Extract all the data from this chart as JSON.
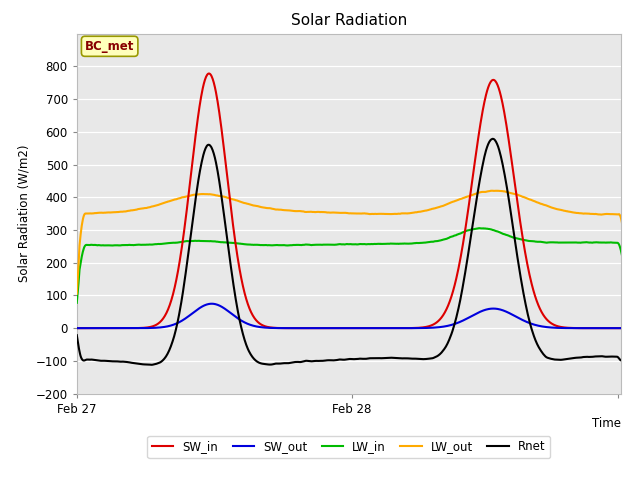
{
  "title": "Solar Radiation",
  "xlabel": "Time",
  "ylabel": "Solar Radiation (W/m2)",
  "ylim": [
    -200,
    900
  ],
  "yticks": [
    -200,
    -100,
    0,
    100,
    200,
    300,
    400,
    500,
    600,
    700,
    800
  ],
  "label_box": "BC_met",
  "background_color": "#e8e8e8",
  "fig_bg_color": "#ffffff",
  "series": {
    "SW_in": {
      "color": "#dd0000",
      "lw": 1.5
    },
    "SW_out": {
      "color": "#0000dd",
      "lw": 1.5
    },
    "LW_in": {
      "color": "#00bb00",
      "lw": 1.5
    },
    "LW_out": {
      "color": "#ffaa00",
      "lw": 1.5
    },
    "Rnet": {
      "color": "#000000",
      "lw": 1.5
    }
  }
}
